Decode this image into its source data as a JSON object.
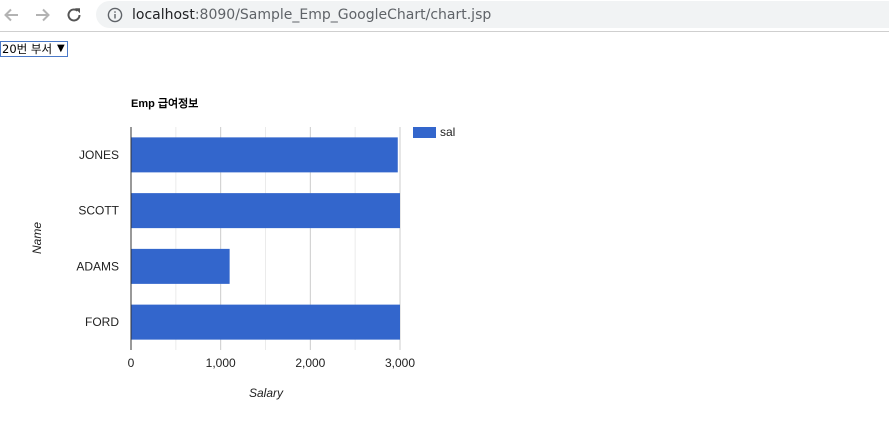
{
  "browser": {
    "url_host": "localhost",
    "url_rest": ":8090/Sample_Emp_GoogleChart/chart.jsp"
  },
  "dept_select": {
    "selected": "20번 부서"
  },
  "colors": {
    "bar": "#3366cc",
    "axis": "#333333",
    "grid": "#cccccc",
    "minor_grid": "#ebebeb",
    "text": "#222222",
    "axis_title": "#222222"
  },
  "chart_data": {
    "type": "bar",
    "orientation": "horizontal",
    "title": "Emp 급여정보",
    "xlabel": "Salary",
    "ylabel": "Name",
    "categories": [
      "JONES",
      "SCOTT",
      "ADAMS",
      "FORD"
    ],
    "series": [
      {
        "name": "sal",
        "values": [
          2975,
          3000,
          1100,
          3000
        ]
      }
    ],
    "xlim": [
      0,
      3000
    ],
    "xticks": [
      0,
      1000,
      2000,
      3000
    ],
    "xtick_labels": [
      "0",
      "1,000",
      "2,000",
      "3,000"
    ],
    "grid": true,
    "legend": "right"
  }
}
